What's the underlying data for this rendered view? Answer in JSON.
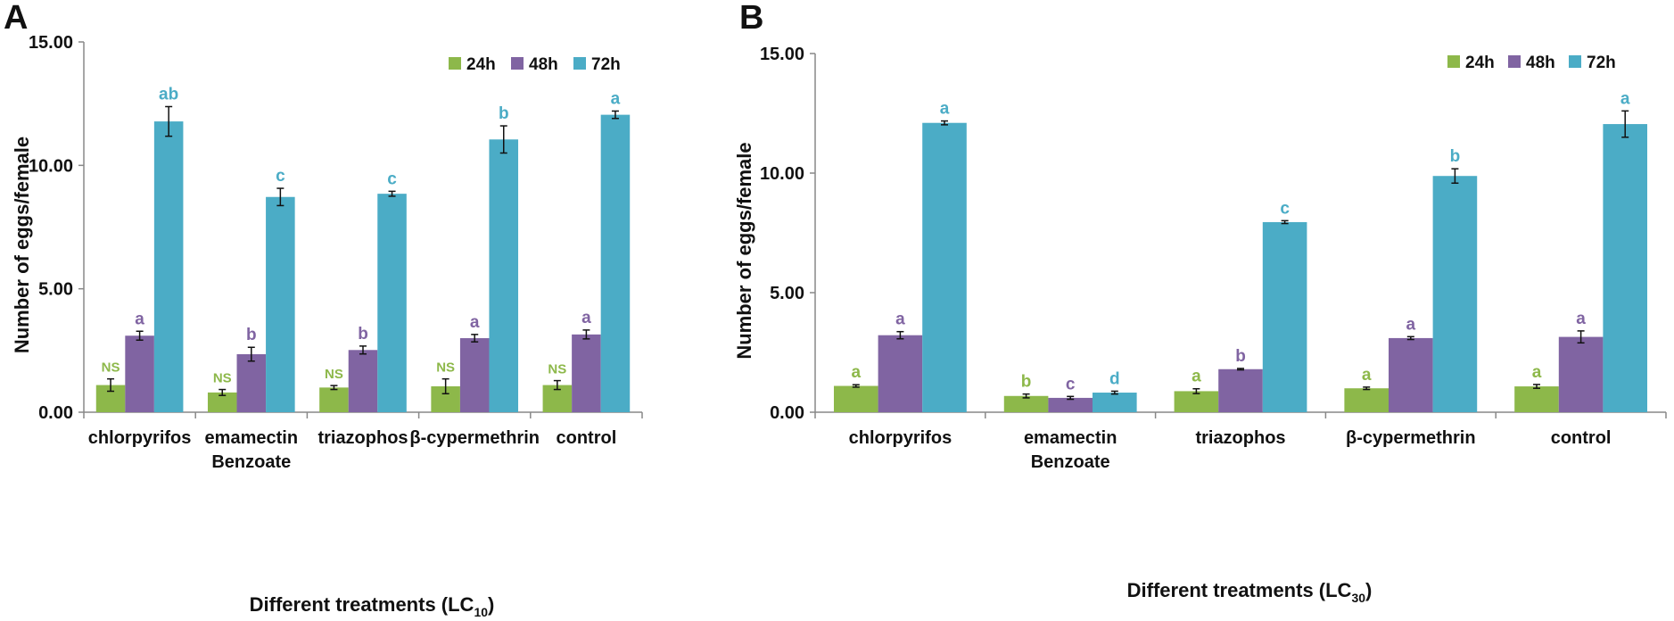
{
  "colors": {
    "24h": "#8DB84A",
    "48h": "#8064A2",
    "72h": "#4BACC6"
  },
  "chart_data": [
    {
      "type": "bar",
      "panel_label": "A",
      "ylabel": "Number of eggs/female",
      "xlabel_main": "Different treatments (LC",
      "xlabel_sub": "10",
      "xlabel_end": ")",
      "ylim": [
        0,
        15
      ],
      "yticks": [
        "0.00",
        "5.00",
        "10.00",
        "15.00"
      ],
      "categories": [
        [
          "chlorpyrifos"
        ],
        [
          "emamectin",
          "Benzoate"
        ],
        [
          "triazophos"
        ],
        [
          "β-cypermethrin"
        ],
        [
          "control"
        ]
      ],
      "legend": [
        "24h",
        "48h",
        "72h"
      ],
      "series": [
        {
          "name": "24h",
          "values": [
            1.1,
            0.8,
            1.0,
            1.05,
            1.1
          ],
          "errors": [
            0.25,
            0.12,
            0.08,
            0.3,
            0.18
          ],
          "labels": [
            "NS",
            "NS",
            "NS",
            "NS",
            "NS"
          ]
        },
        {
          "name": "48h",
          "values": [
            3.1,
            2.35,
            2.52,
            3.0,
            3.15
          ],
          "errors": [
            0.18,
            0.28,
            0.16,
            0.15,
            0.18
          ],
          "labels": [
            "a",
            "b",
            "b",
            "a",
            "a"
          ]
        },
        {
          "name": "72h",
          "values": [
            11.78,
            8.72,
            8.85,
            11.05,
            12.05
          ],
          "errors": [
            0.6,
            0.35,
            0.1,
            0.55,
            0.15
          ],
          "labels": [
            "ab",
            "c",
            "c",
            "b",
            "a"
          ]
        }
      ]
    },
    {
      "type": "bar",
      "panel_label": "B",
      "ylabel": "Number of eggs/female",
      "xlabel_main": "Different treatments (LC",
      "xlabel_sub": "30",
      "xlabel_end": ")",
      "ylim": [
        0,
        15
      ],
      "yticks": [
        "0.00",
        "5.00",
        "10.00",
        "15.00"
      ],
      "categories": [
        [
          "chlorpyrifos"
        ],
        [
          "emamectin",
          "Benzoate"
        ],
        [
          "triazophos"
        ],
        [
          "β-cypermethrin"
        ],
        [
          "control"
        ]
      ],
      "legend": [
        "24h",
        "48h",
        "72h"
      ],
      "series": [
        {
          "name": "24h",
          "values": [
            1.1,
            0.68,
            0.88,
            1.0,
            1.08
          ],
          "errors": [
            0.05,
            0.08,
            0.1,
            0.05,
            0.08
          ],
          "labels": [
            "a",
            "b",
            "a",
            "a",
            "a"
          ]
        },
        {
          "name": "48h",
          "values": [
            3.22,
            0.6,
            1.8,
            3.1,
            3.15
          ],
          "errors": [
            0.15,
            0.06,
            0.03,
            0.06,
            0.25
          ],
          "labels": [
            "a",
            "c",
            "b",
            "a",
            "a"
          ]
        },
        {
          "name": "72h",
          "values": [
            12.1,
            0.82,
            7.95,
            9.88,
            12.05
          ],
          "errors": [
            0.08,
            0.06,
            0.06,
            0.3,
            0.55
          ],
          "labels": [
            "a",
            "d",
            "c",
            "b",
            "a"
          ]
        }
      ]
    }
  ]
}
